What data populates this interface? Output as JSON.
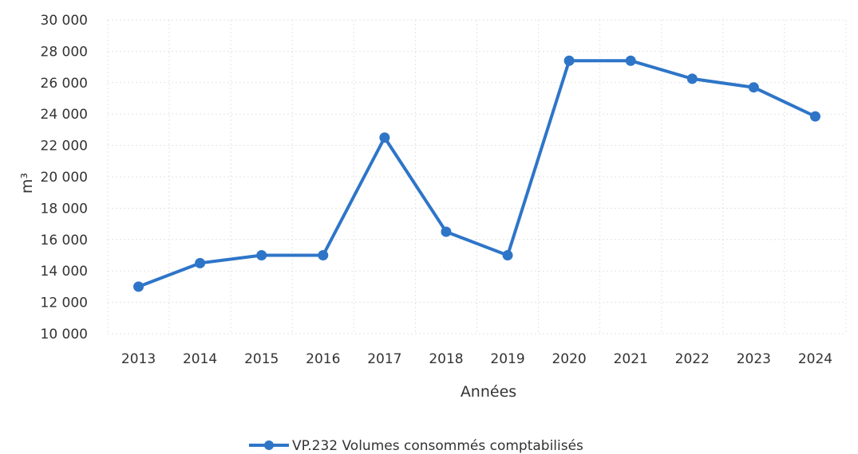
{
  "chart_data": {
    "type": "line",
    "categories": [
      "2013",
      "2014",
      "2015",
      "2016",
      "2017",
      "2018",
      "2019",
      "2020",
      "2021",
      "2022",
      "2023",
      "2024"
    ],
    "series": [
      {
        "name": "VP.232 Volumes consommés comptabilisés",
        "values": [
          13000,
          14500,
          15000,
          15000,
          22500,
          16500,
          15000,
          27400,
          27400,
          26250,
          25700,
          23850
        ],
        "color": "#2e75c8"
      }
    ],
    "xlabel": "Années",
    "ylabel": "m³",
    "ylim": [
      10000,
      30000
    ],
    "yticks": [
      10000,
      12000,
      14000,
      16000,
      18000,
      20000,
      22000,
      24000,
      26000,
      28000,
      30000
    ],
    "ytick_labels": [
      "10 000",
      "12 000",
      "14 000",
      "16 000",
      "18 000",
      "20 000",
      "22 000",
      "24 000",
      "26 000",
      "28 000",
      "30 000"
    ],
    "grid": true,
    "legend_position": "bottom"
  }
}
